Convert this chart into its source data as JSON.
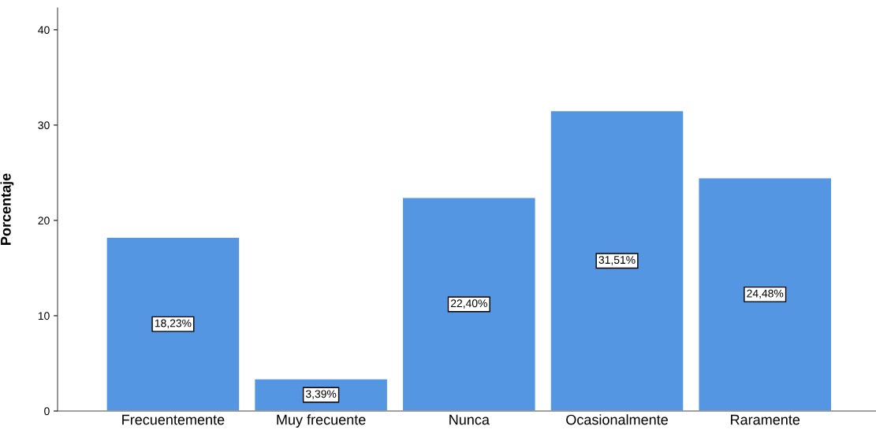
{
  "chart_data": {
    "type": "bar",
    "ylabel": "Porcentaje",
    "categories": [
      "Frecuentemente",
      "Muy frecuente",
      "Nunca",
      "Ocasionalmente",
      "Raramente"
    ],
    "values": [
      18.23,
      3.39,
      22.4,
      31.51,
      24.48
    ],
    "value_labels": [
      "18,23%",
      "3,39%",
      "22,40%",
      "31,51%",
      "24,48%"
    ],
    "color": "#5596e3",
    "ylim": [
      0,
      42.3
    ],
    "yticks": [
      0,
      10,
      20,
      30,
      40
    ],
    "grid": false
  }
}
